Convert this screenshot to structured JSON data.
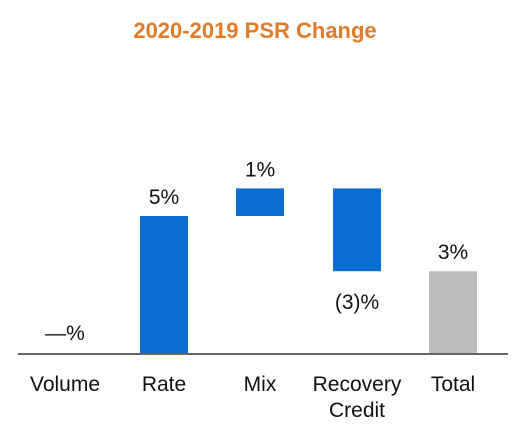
{
  "chart_data": {
    "type": "bar",
    "subtype": "waterfall",
    "title": "2020-2019 PSR Change",
    "xlabel": "",
    "ylabel": "",
    "grid": false,
    "legend": "none",
    "categories": [
      [
        "Volume"
      ],
      [
        "Rate"
      ],
      [
        "Mix"
      ],
      [
        "Recovery",
        "Credit"
      ],
      [
        "Total"
      ]
    ],
    "values": [
      0,
      5,
      1,
      -3,
      3
    ],
    "data_labels": [
      "—%",
      "5%",
      "1%",
      "(3)%",
      "3%"
    ],
    "ylim": [
      0,
      6.5
    ],
    "colors": {
      "title": "#e07b2a",
      "step": "#0a6fd0",
      "total": "#bdbdbd",
      "axis": "#666666"
    }
  }
}
